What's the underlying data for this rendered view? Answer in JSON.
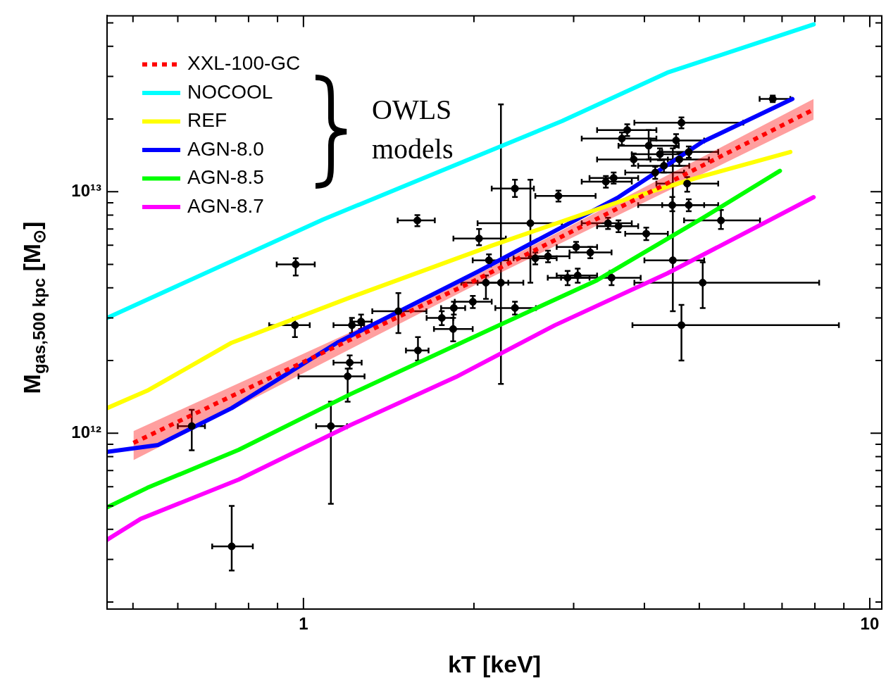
{
  "chart_data": {
    "type": "line",
    "xlabel": "kT [keV]",
    "ylabel": "M$_{gas,500 kpc}$ [M$_{⊙}$]",
    "annotations": [
      "OWLS models"
    ],
    "log": "xy",
    "grid": false,
    "legend": "top left",
    "xlim": [
      0.45,
      10.5
    ],
    "ylim": [
      187000000000.0,
      53500000000000.0
    ],
    "xticks": [
      {
        "value": 0.5,
        "label": null
      },
      {
        "value": 0.6,
        "label": null
      },
      {
        "value": 0.7,
        "label": null
      },
      {
        "value": 0.8,
        "label": null
      },
      {
        "value": 0.9,
        "label": null
      },
      1,
      {
        "value": 2,
        "label": null
      },
      {
        "value": 3,
        "label": null
      },
      {
        "value": 4,
        "label": null
      },
      {
        "value": 5,
        "label": null
      },
      {
        "value": 6,
        "label": null
      },
      {
        "value": 7,
        "label": null
      },
      {
        "value": 8,
        "label": null
      },
      {
        "value": 9,
        "label": null
      },
      10
    ],
    "yticks": [
      {
        "value": 200000000000.0,
        "label": null
      },
      {
        "value": 300000000000.0,
        "label": null
      },
      {
        "value": 400000000000.0,
        "label": null
      },
      {
        "value": 500000000000.0,
        "label": null
      },
      {
        "value": 600000000000.0,
        "label": null
      },
      {
        "value": 700000000000.0,
        "label": null
      },
      {
        "value": 800000000000.0,
        "label": null
      },
      {
        "value": 900000000000.0,
        "label": null
      },
      {
        "value": 1000000000000.0,
        "label": "10¹²"
      },
      {
        "value": 2000000000000.0,
        "label": null
      },
      {
        "value": 3000000000000.0,
        "label": null
      },
      {
        "value": 4000000000000.0,
        "label": null
      },
      {
        "value": 5000000000000.0,
        "label": null
      },
      {
        "value": 6000000000000.0,
        "label": null
      },
      {
        "value": 7000000000000.0,
        "label": null
      },
      {
        "value": 8000000000000.0,
        "label": null
      },
      {
        "value": 9000000000000.0,
        "label": null
      },
      {
        "value": 10000000000000.0,
        "label": "10¹³"
      },
      {
        "value": 20000000000000.0,
        "label": null
      },
      {
        "value": 30000000000000.0,
        "label": null
      },
      {
        "value": 40000000000000.0,
        "label": null
      },
      {
        "value": 50000000000000.0,
        "label": null
      }
    ],
    "series": [
      {
        "name": "XXL-100-GC",
        "color": "#ff0000",
        "line_style": "dotted",
        "x": [
          0.501,
          2.0,
          7.96
        ],
        "values": [
          912000000000.0,
          4270000000000.0,
          21900000000000.0
        ],
        "lower": [
          773000000000.0,
          4080000000000.0,
          19900000000000.0
        ],
        "upper": [
          1020000000000.0,
          4470000000000.0,
          24200000000000.0
        ]
      },
      {
        "name": "NOCOOL",
        "color": "#00ffff",
        "x": [
          0.45,
          1.083,
          2.86,
          4.39,
          7.96
        ],
        "values": [
          3000000000000.0,
          7670000000000.0,
          19600000000000.0,
          31100000000000.0,
          49300000000000.0
        ]
      },
      {
        "name": "REF",
        "color": "#ffff00",
        "x": [
          0.45,
          0.53,
          0.747,
          1.21,
          2.15,
          3.81,
          5.07,
          7.24
        ],
        "values": [
          1270000000000.0,
          1500000000000.0,
          2370000000000.0,
          3650000000000.0,
          5980000000000.0,
          9490000000000.0,
          11600000000000.0,
          14600000000000.0
        ]
      },
      {
        "name": "AGN-8.0",
        "color": "#0000ff",
        "x": [
          0.45,
          0.554,
          0.747,
          1.147,
          2.03,
          3.6,
          5.07,
          7.3
        ],
        "values": [
          837000000000.0,
          894000000000.0,
          1270000000000.0,
          2370000000000.0,
          4660000000000.0,
          9490000000000.0,
          16100000000000.0,
          24200000000000.0
        ]
      },
      {
        "name": "AGN-8.5",
        "color": "#00ff00",
        "x": [
          0.45,
          0.53,
          0.769,
          1.21,
          2.15,
          3.3,
          5.07,
          6.94
        ],
        "values": [
          493000000000.0,
          594000000000.0,
          854000000000.0,
          1450000000000.0,
          2710000000000.0,
          4300000000000.0,
          7780000000000.0,
          12200000000000.0
        ]
      },
      {
        "name": "AGN-8.7",
        "color": "#ff00ff",
        "x": [
          0.45,
          0.516,
          0.769,
          1.21,
          1.86,
          2.78,
          4.39,
          7.96
        ],
        "values": [
          362000000000.0,
          442000000000.0,
          643000000000.0,
          1080000000000.0,
          1710000000000.0,
          2800000000000.0,
          4590000000000.0,
          9490000000000.0
        ]
      },
      {
        "type": "scatter",
        "color": "#000000",
        "marker": "circle",
        "x": [
          0.747,
          0.969,
          0.966,
          1.118,
          1.589,
          1.207,
          1.197,
          1.593,
          1.218,
          1.264,
          1.755,
          1.838,
          1.843,
          1.471,
          2.232,
          2.363,
          2.516,
          2.042,
          2.126,
          2.1,
          1.991,
          2.363,
          2.567,
          2.703,
          2.82,
          3.03,
          3.21,
          2.927,
          3.05,
          3.5,
          3.45,
          3.6,
          4.03,
          3.42,
          3.53,
          3.73,
          3.65,
          4.07,
          4.26,
          3.83,
          4.33,
          4.18,
          6.74,
          4.65,
          4.55,
          4.79,
          4.61,
          4.76,
          4.48,
          4.49,
          4.79,
          5.46,
          5.07,
          4.65,
          0.635
        ],
        "values": [
          340000000000.0,
          5000000000000.0,
          2800000000000.0,
          1070000000000.0,
          7600000000000.0,
          1960000000000.0,
          1720000000000.0,
          2200000000000.0,
          2800000000000.0,
          2900000000000.0,
          3000000000000.0,
          2700000000000.0,
          3300000000000.0,
          3200000000000.0,
          4200000000000.0,
          10300000000000.0,
          7400000000000.0,
          6400000000000.0,
          5200000000000.0,
          4200000000000.0,
          3500000000000.0,
          3300000000000.0,
          5300000000000.0,
          5400000000000.0,
          9600000000000.0,
          5900000000000.0,
          5600000000000.0,
          4400000000000.0,
          4500000000000.0,
          4400000000000.0,
          7400000000000.0,
          7200000000000.0,
          6700000000000.0,
          11000000000000.0,
          11400000000000.0,
          18000000000000.0,
          16600000000000.0,
          15500000000000.0,
          14300000000000.0,
          13600000000000.0,
          12800000000000.0,
          12000000000000.0,
          24200000000000.0,
          19300000000000.0,
          16300000000000.0,
          14600000000000.0,
          13600000000000.0,
          10800000000000.0,
          8800000000000.0,
          5200000000000.0,
          8800000000000.0,
          7600000000000.0,
          4200000000000.0,
          2800000000000.0,
          1070000000000.0
        ],
        "xerrors": [
          [
            0.69,
            0.814
          ],
          [
            0.897,
            1.047
          ],
          [
            0.87,
            1.026
          ],
          [
            1.053,
            1.194
          ],
          [
            1.467,
            1.706
          ],
          [
            1.13,
            1.267
          ],
          [
            0.98,
            1.282
          ],
          [
            1.517,
            1.663
          ],
          [
            1.13,
            1.28
          ],
          [
            1.21,
            1.32
          ],
          [
            1.65,
            1.84
          ],
          [
            1.7,
            1.99
          ],
          [
            1.75,
            1.93
          ],
          [
            1.323,
            1.649
          ],
          [
            2.03,
            2.445
          ],
          [
            2.15,
            2.552
          ],
          [
            2.03,
            2.86
          ],
          [
            1.84,
            2.277
          ],
          [
            1.99,
            2.3
          ],
          [
            1.9,
            2.3
          ],
          [
            1.85,
            2.15
          ],
          [
            2.182,
            2.574
          ],
          [
            2.35,
            2.8
          ],
          [
            2.5,
            2.95
          ],
          [
            2.567,
            3.28
          ],
          [
            2.8,
            3.3
          ],
          [
            2.95,
            3.5
          ],
          [
            2.7,
            3.2
          ],
          [
            2.8,
            3.3
          ],
          [
            2.85,
            3.94
          ],
          [
            3.1,
            3.8
          ],
          [
            3.3,
            3.9
          ],
          [
            3.7,
            4.4
          ],
          [
            3.1,
            3.8
          ],
          [
            3.2,
            3.9
          ],
          [
            3.3,
            4.2
          ],
          [
            3.1,
            4.2
          ],
          [
            3.6,
            4.6
          ],
          [
            3.8,
            4.8
          ],
          [
            3.3,
            4.4
          ],
          [
            3.9,
            4.8
          ],
          [
            3.7,
            4.7
          ],
          [
            6.39,
            7.24
          ],
          [
            3.84,
            5.98
          ],
          [
            4.1,
            5.1
          ],
          [
            4.3,
            5.4
          ],
          [
            4.1,
            5.2
          ],
          [
            4.2,
            5.4
          ],
          [
            3.9,
            5.1
          ],
          [
            4.0,
            5.1
          ],
          [
            4.3,
            5.4
          ],
          [
            4.7,
            6.4
          ],
          [
            3.84,
            8.14
          ],
          [
            3.81,
            8.82
          ],
          [
            0.6,
            0.67
          ]
        ],
        "errors": [
          [
            270000000000.0,
            500000000000.0
          ],
          [
            4500000000000.0,
            5300000000000.0
          ],
          [
            2500000000000.0,
            3000000000000.0
          ],
          [
            510000000000.0,
            1350000000000.0
          ],
          [
            7200000000000.0,
            8000000000000.0
          ],
          [
            1850000000000.0,
            2100000000000.0
          ],
          [
            1350000000000.0,
            1850000000000.0
          ],
          [
            2000000000000.0,
            2500000000000.0
          ],
          [
            2600000000000.0,
            3000000000000.0
          ],
          [
            2700000000000.0,
            3100000000000.0
          ],
          [
            2800000000000.0,
            3200000000000.0
          ],
          [
            2400000000000.0,
            3000000000000.0
          ],
          [
            3100000000000.0,
            3500000000000.0
          ],
          [
            2600000000000.0,
            3800000000000.0
          ],
          [
            1600000000000.0,
            23000000000000.0
          ],
          [
            9500000000000.0,
            11200000000000.0
          ],
          [
            4200000000000.0,
            11200000000000.0
          ],
          [
            6000000000000.0,
            7000000000000.0
          ],
          [
            4900000000000.0,
            5500000000000.0
          ],
          [
            3600000000000.0,
            4500000000000.0
          ],
          [
            3300000000000.0,
            3700000000000.0
          ],
          [
            3100000000000.0,
            3500000000000.0
          ],
          [
            5000000000000.0,
            5600000000000.0
          ],
          [
            5100000000000.0,
            5700000000000.0
          ],
          [
            9100000000000.0,
            10100000000000.0
          ],
          [
            5600000000000.0,
            6200000000000.0
          ],
          [
            5300000000000.0,
            5900000000000.0
          ],
          [
            4100000000000.0,
            4700000000000.0
          ],
          [
            4200000000000.0,
            4800000000000.0
          ],
          [
            4100000000000.0,
            4700000000000.0
          ],
          [
            7000000000000.0,
            7800000000000.0
          ],
          [
            6800000000000.0,
            7600000000000.0
          ],
          [
            6300000000000.0,
            7100000000000.0
          ],
          [
            10400000000000.0,
            11600000000000.0
          ],
          [
            10800000000000.0,
            12000000000000.0
          ],
          [
            17000000000000.0,
            19000000000000.0
          ],
          [
            15600000000000.0,
            17600000000000.0
          ],
          [
            13600000000000.0,
            18000000000000.0
          ],
          [
            13500000000000.0,
            15100000000000.0
          ],
          [
            12800000000000.0,
            14400000000000.0
          ],
          [
            12000000000000.0,
            13600000000000.0
          ],
          [
            11300000000000.0,
            12700000000000.0
          ],
          [
            23500000000000.0,
            25000000000000.0
          ],
          [
            18300000000000.0,
            20300000000000.0
          ],
          [
            15300000000000.0,
            17300000000000.0
          ],
          [
            13800000000000.0,
            15400000000000.0
          ],
          [
            12800000000000.0,
            14400000000000.0
          ],
          [
            10000000000000.0,
            11500000000000.0
          ],
          [
            8300000000000.0,
            9500000000000.0
          ],
          [
            3200000000000.0,
            15100000000000.0
          ],
          [
            8300000000000.0,
            9300000000000.0
          ],
          [
            7000000000000.0,
            8400000000000.0
          ],
          [
            3300000000000.0,
            5100000000000.0
          ],
          [
            2000000000000.0,
            3400000000000.0
          ],
          [
            850000000000.0,
            1250000000000.0
          ]
        ]
      }
    ]
  }
}
